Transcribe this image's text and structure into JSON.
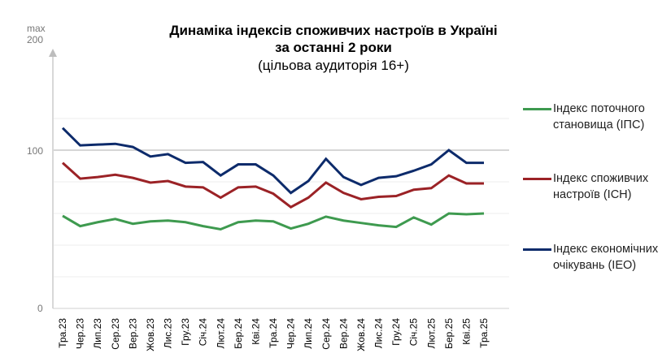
{
  "chart_data": {
    "type": "line",
    "title": "Динаміка індексів споживчих настроїв в Україні",
    "title_line2": "за останні 2 роки",
    "subtitle": "(цільова аудиторія 16+)",
    "y_max_label": "max",
    "yticks": [
      0,
      100,
      200
    ],
    "ylim": [
      0,
      200
    ],
    "grid": true,
    "legend_position": "right",
    "categories": [
      "Тра.23",
      "Чер.23",
      "Лип.23",
      "Сер.23",
      "Вер.23",
      "Жов.23",
      "Лис.23",
      "Гру.23",
      "Січ.24",
      "Лют.24",
      "Бер.24",
      "Кві.24",
      "Тра.24",
      "Чер.24",
      "Лип.24",
      "Сер.24",
      "Вер.24",
      "Жов.24",
      "Лис.24",
      "Гру.24",
      "Січ.25",
      "Лют.25",
      "Бер.25",
      "Кві.25",
      "Тра.25"
    ],
    "series": [
      {
        "name": "Індекс поточного становища (ІПС)",
        "color": "#3e9a4f",
        "values": [
          58.5,
          52,
          54.5,
          56.5,
          53.5,
          55,
          55.5,
          54.5,
          52,
          50,
          54.5,
          55.5,
          55,
          50.5,
          53.5,
          58,
          55.5,
          54,
          52.5,
          51.5,
          57.5,
          53,
          60,
          59.5,
          60
        ]
      },
      {
        "name": "Індекс споживчих настроїв (ІСН)",
        "color": "#9b2226",
        "values": [
          92,
          82,
          83,
          84.5,
          82.5,
          79.5,
          80.5,
          77,
          76.5,
          70,
          76.5,
          77,
          72.5,
          64,
          70,
          79.5,
          73,
          69,
          70.5,
          71,
          75,
          76,
          84,
          79,
          79
        ]
      },
      {
        "name": "Індекс економічних очікувань (ІЕО)",
        "color": "#0d2b6b",
        "values": [
          114,
          103,
          103.5,
          104,
          102,
          96,
          97.5,
          92,
          92.5,
          84,
          91,
          91,
          84,
          73,
          80.5,
          94.5,
          83,
          78,
          82.5,
          83.5,
          87,
          91,
          100,
          92,
          92
        ]
      }
    ]
  }
}
